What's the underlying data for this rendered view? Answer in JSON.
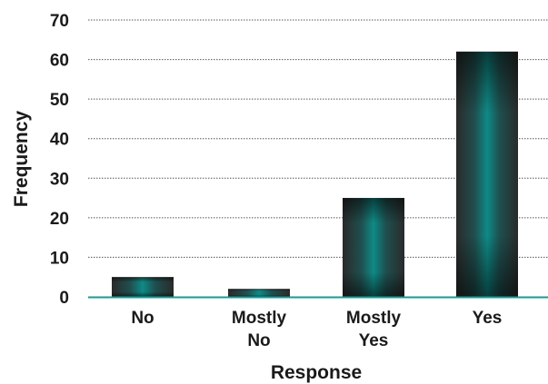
{
  "chart_data": {
    "type": "bar",
    "categories": [
      "No",
      "Mostly No",
      "Mostly Yes",
      "Yes"
    ],
    "category_lines": [
      [
        "No"
      ],
      [
        "Mostly",
        "No"
      ],
      [
        "Mostly",
        "Yes"
      ],
      [
        "Yes"
      ]
    ],
    "values": [
      5,
      2,
      25,
      62
    ],
    "xlabel": "Response",
    "ylabel": "Frequency",
    "ylim": [
      0,
      70
    ],
    "yticks": [
      0,
      10,
      20,
      30,
      40,
      50,
      60,
      70
    ],
    "grid": true,
    "legend": "none"
  },
  "colors": {
    "bar_outer": "#2a2a2a",
    "bar_mid": "#1f4f4f",
    "bar_inner": "#0e8a86",
    "baseline": "#1a9a95",
    "grid": "#555555"
  }
}
